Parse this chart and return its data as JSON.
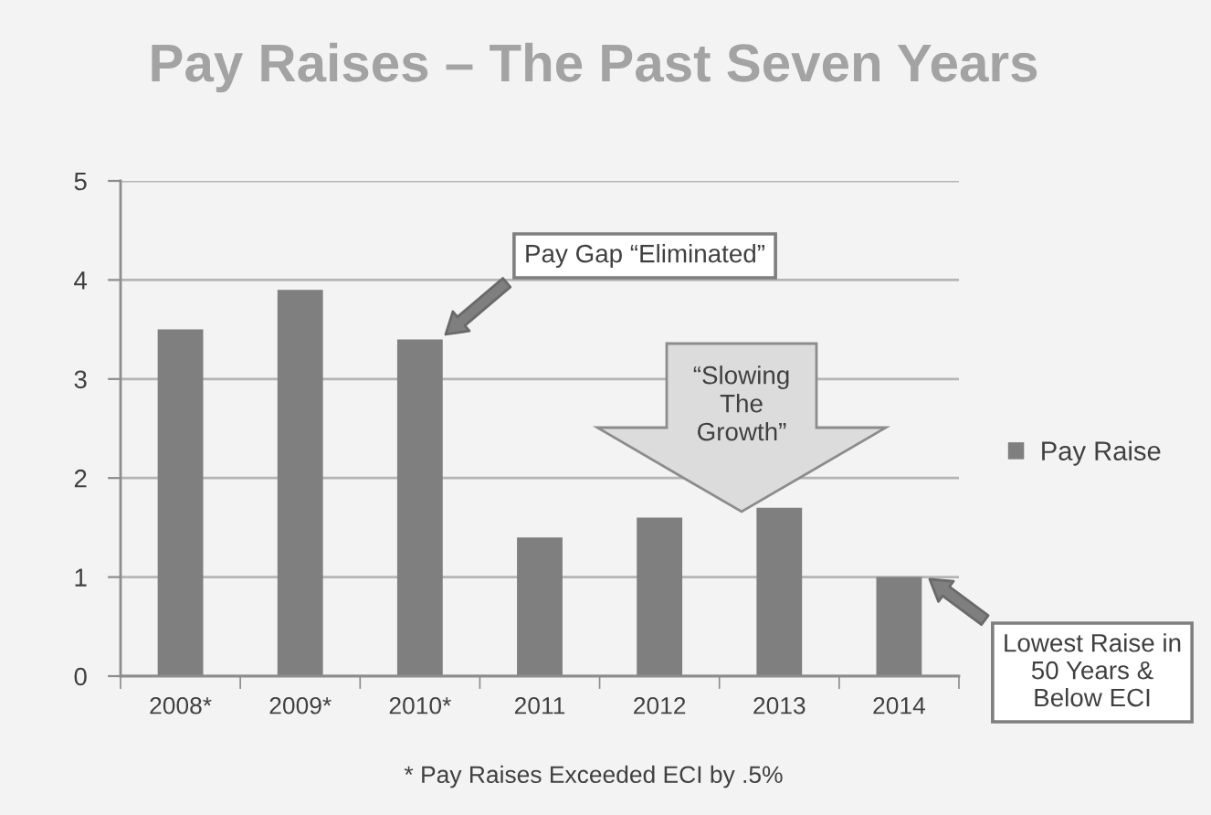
{
  "chart_data": {
    "type": "bar",
    "title": "Pay Raises – The Past Seven Years",
    "categories": [
      "2008*",
      "2009*",
      "2010*",
      "2011",
      "2012",
      "2013",
      "2014"
    ],
    "series": [
      {
        "name": "Pay Raise",
        "color": "#7f7f7f",
        "values": [
          3.5,
          3.9,
          3.4,
          1.4,
          1.6,
          1.7,
          1.0
        ]
      }
    ],
    "ylim": [
      0,
      5
    ],
    "yticks": [
      0,
      1,
      2,
      3,
      4,
      5
    ],
    "grid": "y",
    "legend": "right",
    "annotations": [
      "Pay Gap “Eliminated”",
      "“Slowing\nThe\nGrowth”",
      "Lowest Raise in\n50 Years &\nBelow ECI",
      "* Pay Raises Exceeded ECI by .5%"
    ]
  }
}
